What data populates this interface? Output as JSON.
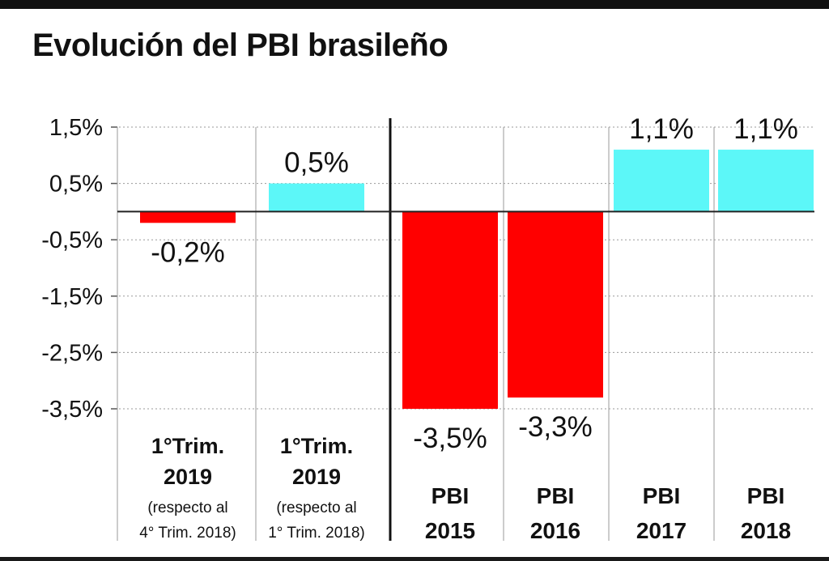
{
  "title": "Evolución del PBI brasileño",
  "colors": {
    "negative": "#ff0000",
    "positive": "#5cf7f8",
    "text": "#111111",
    "grid": "#9a9a9a"
  },
  "chart_data": {
    "type": "bar",
    "title": "Evolución del PBI brasileño",
    "xlabel": "",
    "ylabel": "",
    "ylim": [
      -3.5,
      1.5
    ],
    "grid": true,
    "y_ticks": [
      {
        "value": 1.5,
        "label": "1,5%"
      },
      {
        "value": 0.5,
        "label": "0,5%"
      },
      {
        "value": -0.5,
        "label": "-0,5%"
      },
      {
        "value": -1.5,
        "label": "-1,5%"
      },
      {
        "value": -2.5,
        "label": "-2,5%"
      },
      {
        "value": -3.5,
        "label": "-3,5%"
      }
    ],
    "categories": [
      {
        "line1": "1°Trim.",
        "line2": "2019",
        "note1": "(respecto al",
        "note2": "4° Trim. 2018)"
      },
      {
        "line1": "1°Trim.",
        "line2": "2019",
        "note1": "(respecto al",
        "note2": "1° Trim. 2018)"
      },
      {
        "line1": "PBI",
        "line2": "2015"
      },
      {
        "line1": "PBI",
        "line2": "2016"
      },
      {
        "line1": "PBI",
        "line2": "2017"
      },
      {
        "line1": "PBI",
        "line2": "2018"
      }
    ],
    "values": [
      -0.2,
      0.5,
      -3.5,
      -3.3,
      1.1,
      1.1
    ],
    "value_labels": [
      "-0,2%",
      "0,5%",
      "-3,5%",
      "-3,3%",
      "1,1%",
      "1,1%"
    ]
  }
}
